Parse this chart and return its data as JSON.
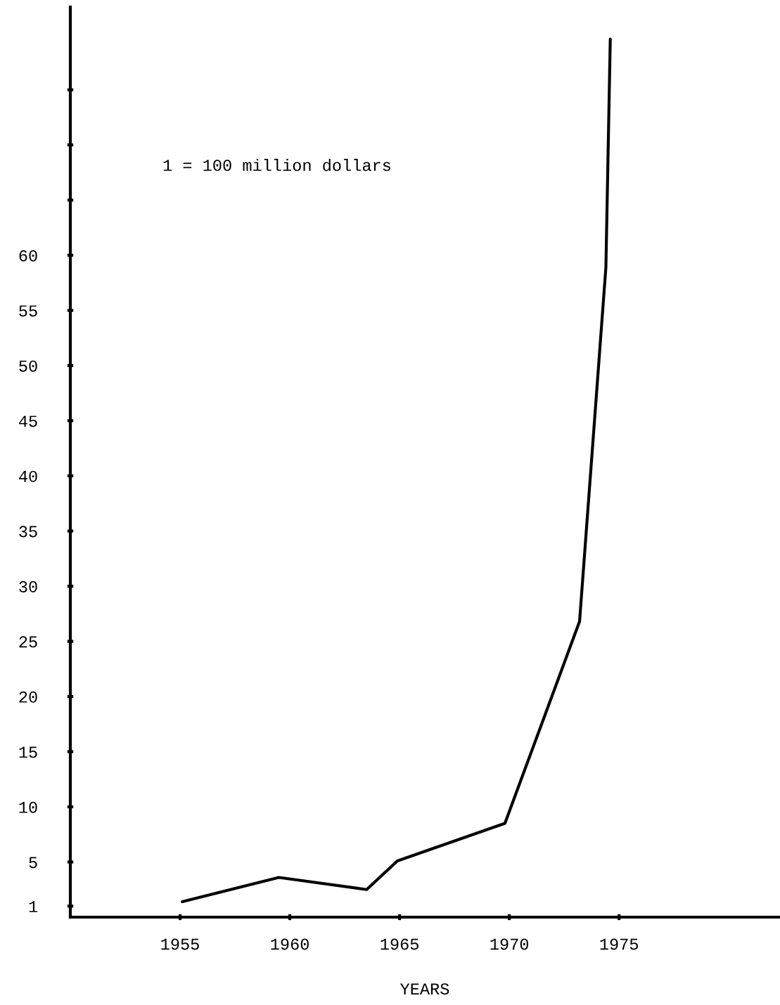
{
  "chart_data": {
    "type": "line",
    "xlabel": "YEARS",
    "annotations": [
      "1 = 100 million dollars"
    ],
    "x": [
      1955.1,
      1959.5,
      1963.5,
      1964.9,
      1969.8,
      1973.2,
      1974.4,
      1974.6
    ],
    "series": [
      {
        "color": "#000000",
        "values": [
          1.4,
          3.6,
          2.5,
          5.1,
          8.5,
          26.8,
          58.9,
          79.6
        ]
      }
    ],
    "xlim": [
      1950,
      1982.3
    ],
    "xticks": [
      1955,
      1960,
      1965,
      1970,
      1975
    ],
    "ylim": [
      0,
      82.5
    ],
    "yticks": [
      1,
      5,
      10,
      15,
      20,
      25,
      30,
      35,
      40,
      45,
      50,
      55,
      60,
      {
        "value": 65,
        "label": null
      },
      {
        "value": 70,
        "label": null
      },
      {
        "value": 75,
        "label": null
      }
    ],
    "grid": false,
    "marker": "none",
    "line_style": "solid"
  }
}
